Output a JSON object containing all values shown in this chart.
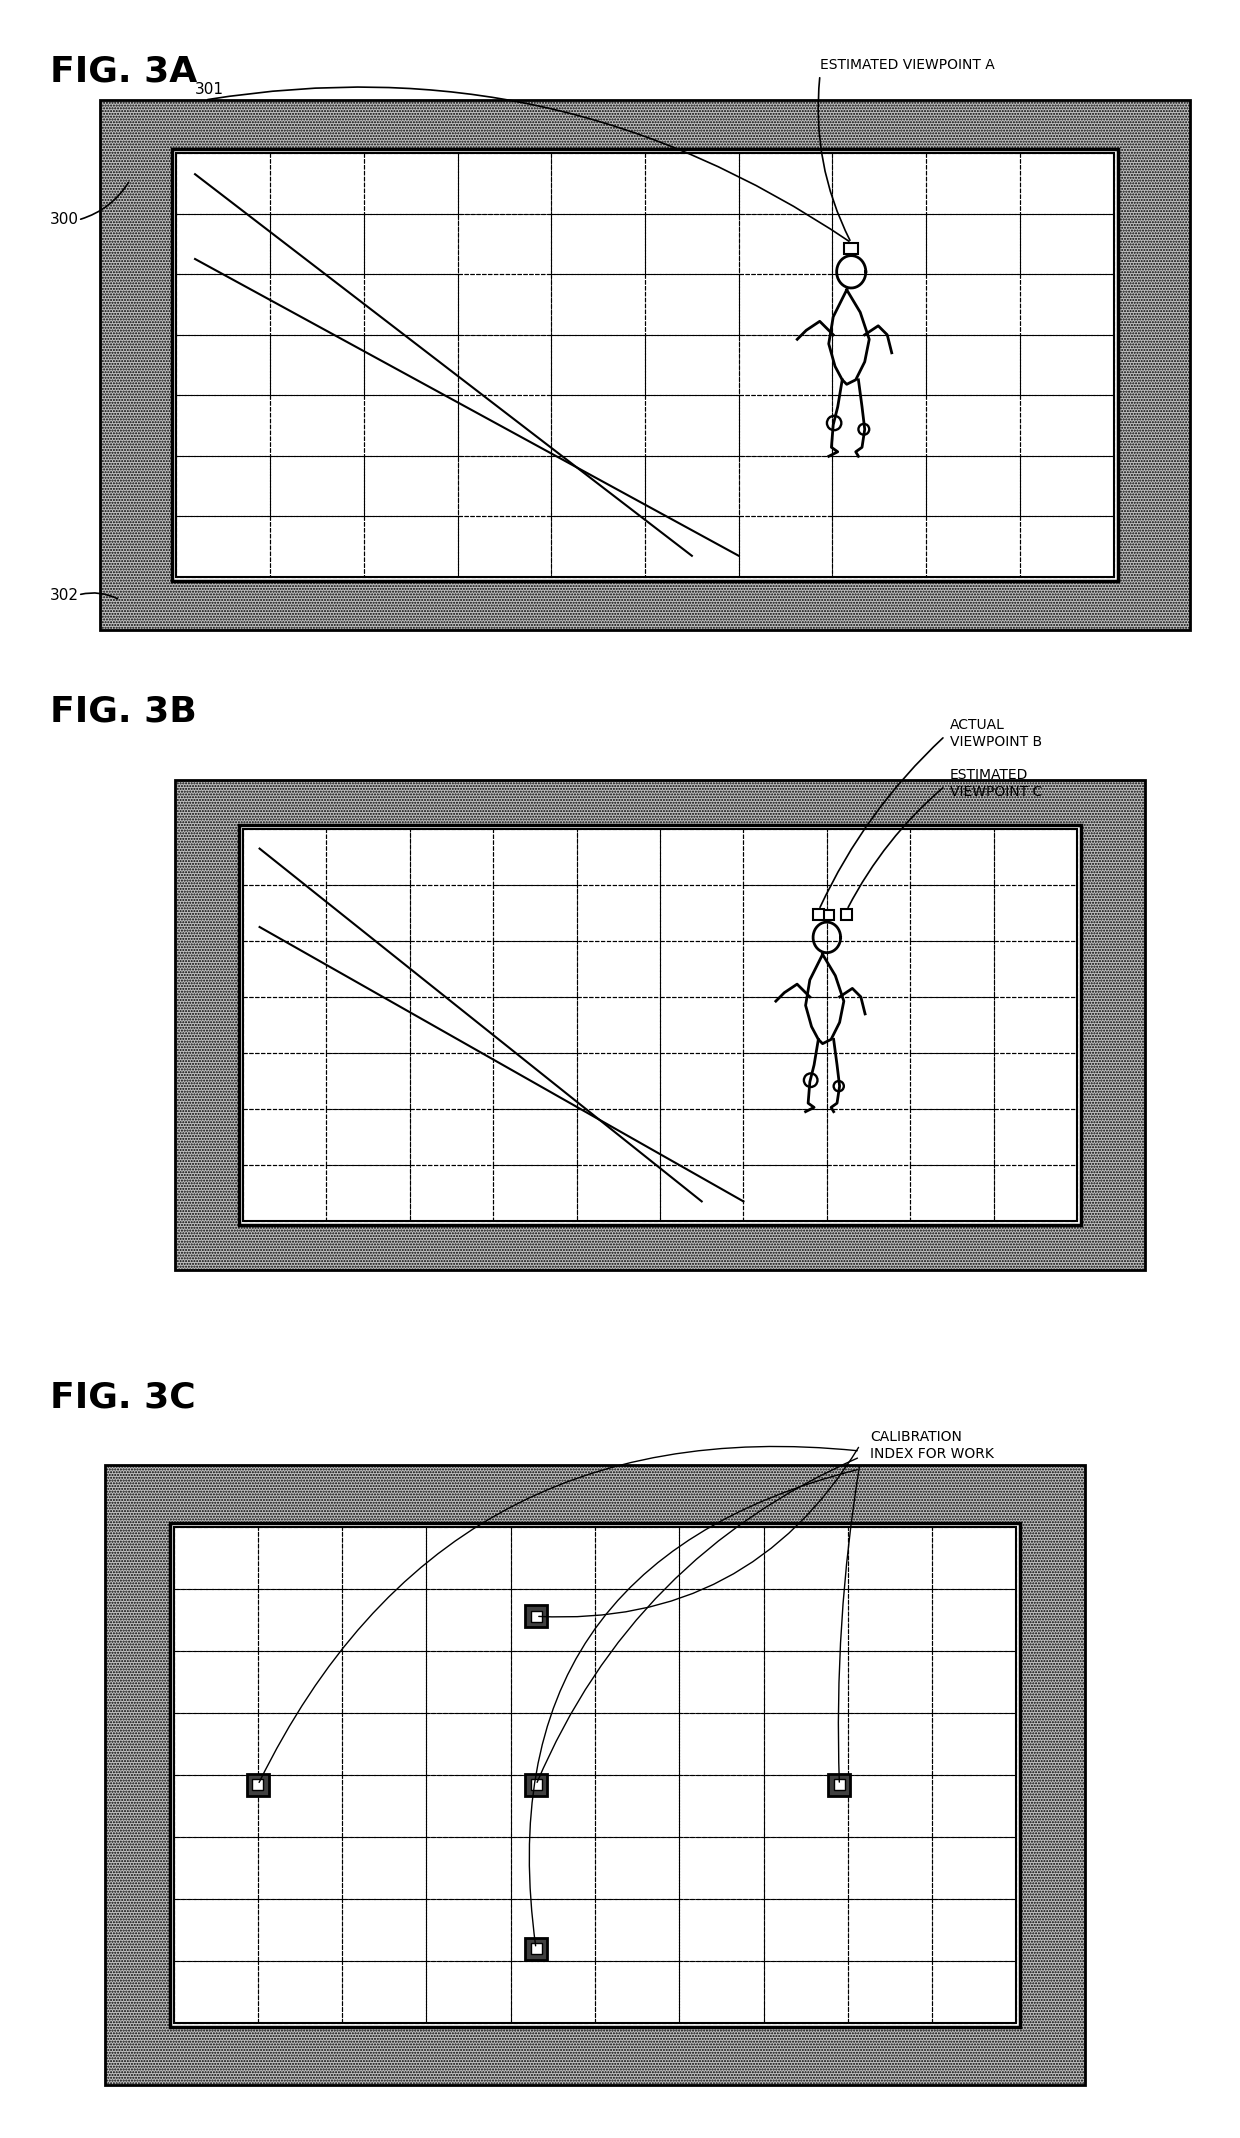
{
  "fig_title_3a": "FIG. 3A",
  "fig_title_3b": "FIG. 3B",
  "fig_title_3c": "FIG. 3C",
  "label_301": "301",
  "label_300": "300",
  "label_302": "302",
  "label_estimated_viewpoint_a": "ESTIMATED VIEWPOINT A",
  "label_actual_viewpoint_b": "ACTUAL\nVIEWPOINT B",
  "label_estimated_viewpoint_c": "ESTIMATED\nVIEWPOINT C",
  "label_calibration": "CALIBRATION\nINDEX FOR WORK",
  "hatch_color": "#aaaaaa",
  "frame_fill": "#b0b0b0",
  "screen_fill": "#ffffff",
  "text_color": "#000000",
  "title_fontsize": 26,
  "label_fontsize": 11,
  "annot_fontsize": 10
}
